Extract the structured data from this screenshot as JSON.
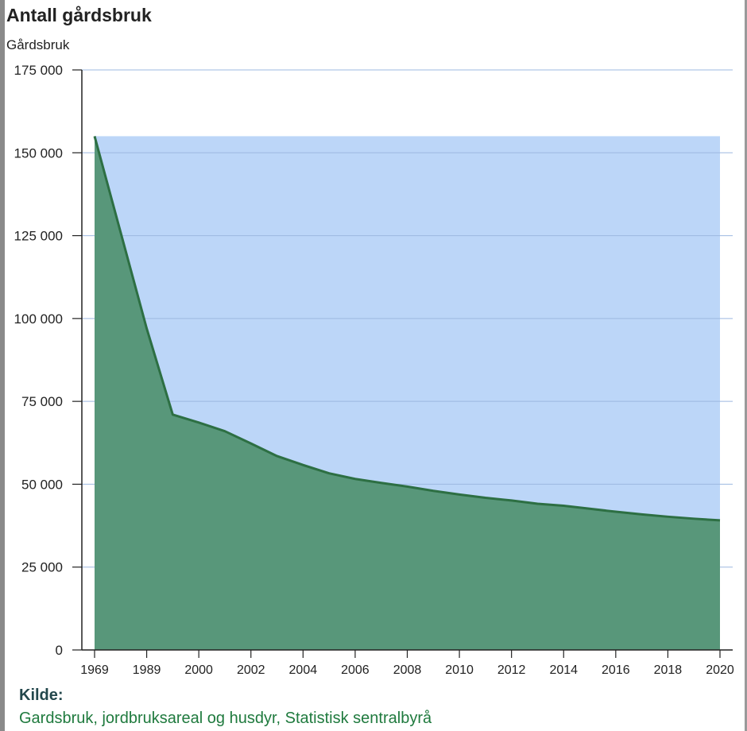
{
  "title": "Antall gårdsbruk",
  "unit_label": "Gårdsbruk",
  "source": {
    "label": "Kilde:",
    "link_text": "Gardsbruk, jordbruksareal og husdyr, Statistisk sentralbyrå"
  },
  "colors": {
    "area_fill": "#58977a",
    "area_stroke": "#2d6f43",
    "background_area": "#bcd6f8",
    "gridline": "#9db8e0"
  },
  "chart_data": {
    "type": "area",
    "title": "Antall gårdsbruk",
    "ylabel": "Gårdsbruk",
    "ylim": [
      0,
      175000
    ],
    "y_ticks": [
      0,
      25000,
      50000,
      75000,
      100000,
      125000,
      150000,
      175000
    ],
    "y_tick_labels": [
      "0",
      "25 000",
      "50 000",
      "75 000",
      "100 000",
      "125 000",
      "150 000",
      "175 000"
    ],
    "x": [
      "1969",
      "1979",
      "1989",
      "1999",
      "2000",
      "2001",
      "2002",
      "2003",
      "2004",
      "2005",
      "2006",
      "2007",
      "2008",
      "2009",
      "2010",
      "2011",
      "2012",
      "2013",
      "2014",
      "2015",
      "2016",
      "2017",
      "2018",
      "2019",
      "2020"
    ],
    "x_tick_labels": [
      "1969",
      "1989",
      "2000",
      "2002",
      "2004",
      "2006",
      "2008",
      "2010",
      "2012",
      "2014",
      "2016",
      "2018",
      "2020"
    ],
    "values": [
      155000,
      126000,
      97000,
      71000,
      68600,
      66000,
      62300,
      58500,
      55800,
      53300,
      51600,
      50400,
      49300,
      48000,
      46900,
      45900,
      45100,
      44100,
      43500,
      42600,
      41700,
      40900,
      40200,
      39600,
      39100
    ],
    "grid": true
  }
}
